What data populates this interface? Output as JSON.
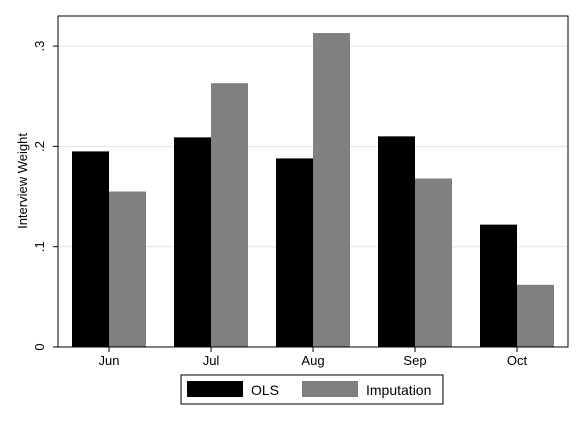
{
  "chart_data": {
    "type": "bar",
    "categories": [
      "Jun",
      "Jul",
      "Aug",
      "Sep",
      "Oct"
    ],
    "series": [
      {
        "name": "OLS",
        "color": "#000000",
        "values": [
          0.195,
          0.209,
          0.188,
          0.21,
          0.122
        ]
      },
      {
        "name": "Imputation",
        "color": "#808080",
        "values": [
          0.155,
          0.263,
          0.313,
          0.168,
          0.062
        ]
      }
    ],
    "title": "",
    "xlabel": "",
    "ylabel": "Interview Weight",
    "ylim": [
      0,
      0.33
    ],
    "yticks": [
      0,
      0.1,
      0.2,
      0.3
    ],
    "ytick_labels": [
      "0",
      ".1",
      ".2",
      ".3"
    ],
    "grid": true,
    "legend_position": "bottom"
  }
}
